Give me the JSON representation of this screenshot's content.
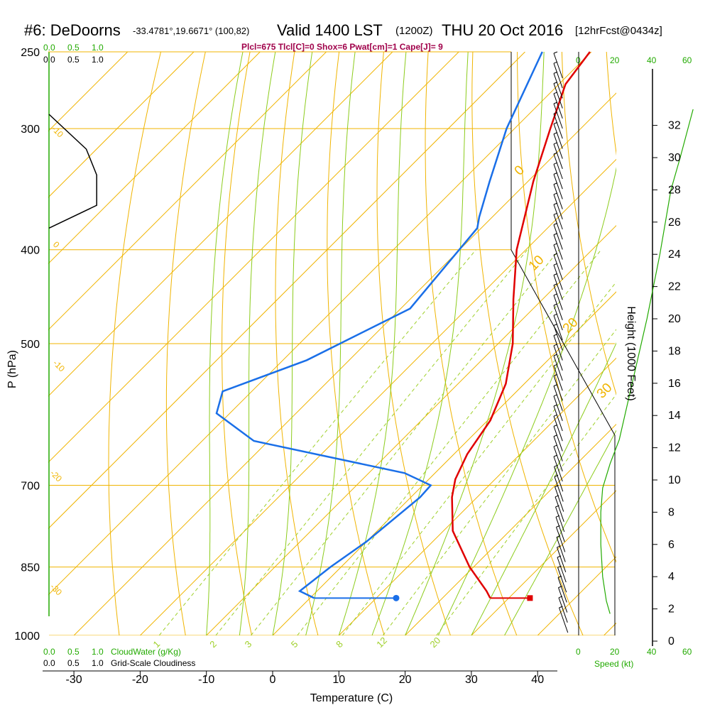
{
  "header": {
    "station": "#6: DeDoorns",
    "coords": "-33.4781°,19.6671° (100,82)",
    "valid": "Valid 1400 LST",
    "zulu": "(1200Z)",
    "date": "THU 20 Oct 2016",
    "forecast": "[12hrFcst@0434z]",
    "params": "Plcl=675 Tlcl[C]=0 Shox=6 Pwat[cm]=1 Cape[J]= 9"
  },
  "top_scales": {
    "cloudwater_ticks": [
      "0.0",
      "0.5",
      "1.0"
    ],
    "cloudiness_ticks": [
      "0.0",
      "0.5",
      "1.0"
    ],
    "speed_ticks": [
      "0",
      "20",
      "40",
      "60"
    ]
  },
  "bottom_scales": {
    "cloudwater_label": "CloudWater (g/Kg)",
    "cloudiness_label": "Grid-Scale Cloudiness",
    "speed_label": "Speed (kt)"
  },
  "colors": {
    "temperature": "#e00000",
    "dewpoint": "#1a6fe8",
    "isotherm": "#f0b400",
    "moist_adiabat": "#8ccc1c",
    "mixing_ratio": "#9fd02a",
    "cloud_fraction": "#000000",
    "wind_speed": "#22aa00"
  },
  "chart_data": {
    "type": "line",
    "title": "#6: DeDoorns  Valid 1400 LST (1200Z) THU 20 Oct 2016",
    "xlabel": "Temperature (C)",
    "ylabel": "P (hPa)",
    "y2label": "Height (1000 Feet)",
    "x_ticks": [
      -30,
      -20,
      -10,
      0,
      10,
      20,
      30,
      40
    ],
    "pressure_ticks": [
      250,
      300,
      400,
      500,
      700,
      850,
      1000
    ],
    "height_ticks": [
      0,
      2,
      4,
      6,
      8,
      10,
      12,
      14,
      16,
      18,
      20,
      22,
      24,
      26,
      28,
      30,
      32
    ],
    "isotherm_labels": [
      "0",
      "10",
      "20",
      "30"
    ],
    "left_labels": [
      "-10",
      "0",
      "-10",
      "-20",
      "-30"
    ],
    "mixing_ratio_labels": [
      "1",
      "2",
      "3",
      "5",
      "8",
      "12",
      "20"
    ],
    "series": [
      {
        "name": "Temperature",
        "pressure": [
          250,
          270,
          300,
          340,
          400,
          450,
          500,
          550,
          600,
          650,
          690,
          720,
          780,
          850,
          900,
          915
        ],
        "values": [
          -40.2,
          -39.0,
          -34.6,
          -29.2,
          -21.4,
          -14.4,
          -7.8,
          -2.8,
          0.4,
          2.0,
          4.0,
          6.2,
          11.4,
          19.4,
          25.6,
          27.2
        ]
      },
      {
        "name": "Dewpoint",
        "pressure": [
          250,
          300,
          340,
          370,
          380,
          410,
          460,
          520,
          560,
          590,
          630,
          680,
          700,
          720,
          800,
          850,
          900,
          915
        ],
        "values": [
          -47.4,
          -41.2,
          -35.8,
          -32.0,
          -30.6,
          -29.8,
          -28.6,
          -36.4,
          -44.4,
          -42.0,
          -32.2,
          -4.6,
          1.2,
          1.4,
          0.0,
          -1.6,
          -2.6,
          0.6
        ]
      }
    ],
    "surface_temperature_marker": {
      "pressure": 915,
      "value": 33.2
    },
    "surface_dewpoint_marker": {
      "pressure": 915,
      "value": 13.0
    },
    "cloud_fraction": {
      "pressure": [
        290,
        315,
        335,
        360,
        380
      ],
      "values": [
        0.0,
        0.75,
        0.96,
        0.96,
        0.0
      ]
    },
    "wind_speed_kt": {
      "height_kft": [
        1.7,
        2.5,
        4.0,
        6.0,
        8.0,
        9.5,
        11.0,
        12.5,
        14.0,
        16.0,
        20.0,
        24.0,
        28.0,
        30.0,
        33.0
      ],
      "values": [
        17,
        15,
        13,
        12,
        12,
        13,
        17,
        22,
        25,
        29,
        37,
        44,
        50,
        55,
        62
      ]
    }
  }
}
